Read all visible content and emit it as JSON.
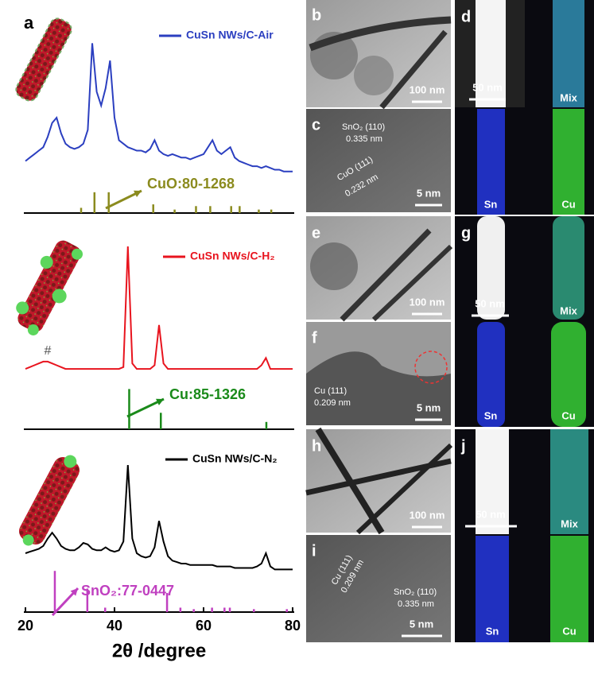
{
  "chart_data": [
    {
      "type": "line",
      "panel_label": "a",
      "x": [
        20,
        21,
        22,
        23,
        24,
        25,
        26,
        27,
        28,
        29,
        30,
        31,
        32,
        33,
        34,
        35,
        36,
        37,
        38,
        39,
        40,
        41,
        42,
        43,
        44,
        45,
        46,
        47,
        48,
        49,
        50,
        51,
        52,
        53,
        54,
        55,
        56,
        57,
        58,
        59,
        60,
        61,
        62,
        63,
        64,
        65,
        66,
        67,
        68,
        69,
        70,
        71,
        72,
        73,
        74,
        75,
        76,
        77,
        78,
        79,
        80
      ],
      "xlim": [
        20,
        80
      ],
      "ylim": [
        0,
        100
      ],
      "series": [
        {
          "name": "CuSn NWs/C-Air",
          "color": "#2b3fc0",
          "values": [
            30,
            32,
            34,
            36,
            38,
            44,
            52,
            55,
            46,
            40,
            38,
            37,
            38,
            40,
            48,
            98,
            70,
            62,
            72,
            88,
            55,
            42,
            40,
            38,
            37,
            36,
            36,
            35,
            37,
            42,
            36,
            34,
            33,
            34,
            33,
            32,
            32,
            31,
            32,
            33,
            34,
            38,
            42,
            36,
            34,
            36,
            38,
            32,
            30,
            29,
            28,
            27,
            27,
            26,
            27,
            26,
            25,
            25,
            24,
            24,
            24
          ]
        }
      ],
      "reference": {
        "name": "CuO:80-1268",
        "color": "#8b8b1e",
        "x": [
          32.5,
          35.5,
          38.7,
          48.7,
          53.5,
          58.3,
          61.5,
          66.2,
          68.1,
          72.4,
          75.2
        ],
        "values": [
          3,
          12,
          12,
          5,
          2,
          4,
          4,
          4,
          4,
          2,
          2
        ]
      }
    },
    {
      "type": "line",
      "x": [
        20,
        21,
        22,
        23,
        24,
        25,
        26,
        27,
        28,
        29,
        30,
        31,
        32,
        33,
        34,
        35,
        36,
        37,
        38,
        39,
        40,
        41,
        42,
        43,
        44,
        45,
        46,
        47,
        48,
        49,
        50,
        51,
        52,
        53,
        54,
        55,
        56,
        57,
        58,
        59,
        60,
        61,
        62,
        63,
        64,
        65,
        66,
        67,
        68,
        69,
        70,
        71,
        72,
        73,
        74,
        75,
        76,
        77,
        78,
        79,
        80
      ],
      "xlim": [
        20,
        80
      ],
      "ylim": [
        0,
        100
      ],
      "series": [
        {
          "name": "CuSn NWs/C-H₂",
          "color": "#e8141e",
          "values": [
            33,
            34,
            35,
            36,
            37,
            37,
            36,
            35,
            34,
            33,
            33,
            33,
            33,
            33,
            33,
            33,
            33,
            33,
            33,
            33,
            33,
            33,
            34,
            100,
            36,
            33,
            33,
            33,
            33,
            35,
            57,
            36,
            33,
            33,
            33,
            33,
            33,
            33,
            33,
            33,
            33,
            33,
            33,
            33,
            33,
            33,
            33,
            33,
            33,
            33,
            33,
            33,
            33,
            35,
            39,
            33,
            33,
            33,
            33,
            33,
            33
          ]
        }
      ],
      "reference": {
        "name": "Cu:85-1326",
        "color": "#1a8a1a",
        "x": [
          43.3,
          50.4,
          74.1
        ],
        "values": [
          22,
          9,
          4
        ]
      },
      "annotations": [
        "#"
      ]
    },
    {
      "type": "line",
      "x": [
        20,
        21,
        22,
        23,
        24,
        25,
        26,
        27,
        28,
        29,
        30,
        31,
        32,
        33,
        34,
        35,
        36,
        37,
        38,
        39,
        40,
        41,
        42,
        43,
        44,
        45,
        46,
        47,
        48,
        49,
        50,
        51,
        52,
        53,
        54,
        55,
        56,
        57,
        58,
        59,
        60,
        61,
        62,
        63,
        64,
        65,
        66,
        67,
        68,
        69,
        70,
        71,
        72,
        73,
        74,
        75,
        76,
        77,
        78,
        79,
        80
      ],
      "xlim": [
        20,
        80
      ],
      "ylim": [
        0,
        100
      ],
      "xticks": [
        20,
        40,
        60,
        80
      ],
      "xlabel": "2θ /degree",
      "series": [
        {
          "name": "CuSn NWs/C-N₂",
          "color": "#000000",
          "values": [
            40,
            41,
            42,
            43,
            45,
            50,
            54,
            50,
            45,
            43,
            42,
            42,
            44,
            47,
            46,
            43,
            42,
            42,
            44,
            42,
            41,
            42,
            48,
            100,
            50,
            40,
            38,
            37,
            38,
            44,
            62,
            48,
            38,
            35,
            34,
            33,
            33,
            32,
            32,
            32,
            32,
            32,
            32,
            31,
            31,
            31,
            31,
            30,
            30,
            30,
            30,
            30,
            31,
            33,
            40,
            31,
            29,
            29,
            29,
            29,
            29
          ]
        }
      ],
      "reference": {
        "name": "SnO₂:77-0447",
        "color": "#c040c0",
        "x": [
          26.6,
          33.9,
          37.9,
          51.8,
          54.8,
          57.8,
          61.9,
          64.7,
          65.9,
          71.3,
          78.7
        ],
        "values": [
          28,
          16,
          3,
          13,
          3,
          2,
          3,
          3,
          3,
          2,
          2
        ]
      }
    }
  ],
  "panels": [
    {
      "label": "b",
      "scale_bar": "100 nm"
    },
    {
      "label": "c",
      "annotations": [
        "SnO₂ (110)",
        "0.335 nm",
        "CuO (111)",
        "0.232 nm"
      ],
      "scale_bar": "5 nm"
    },
    {
      "label": "d",
      "scale_bar": "50 nm",
      "maps": [
        "Mix",
        "Sn",
        "Cu"
      ]
    },
    {
      "label": "e",
      "scale_bar": "100 nm"
    },
    {
      "label": "f",
      "annotations": [
        "Cu (111)",
        "0.209 nm"
      ],
      "scale_bar": "5 nm"
    },
    {
      "label": "g",
      "scale_bar": "50 nm",
      "maps": [
        "Mix",
        "Sn",
        "Cu"
      ]
    },
    {
      "label": "h",
      "scale_bar": "100 nm"
    },
    {
      "label": "i",
      "annotations": [
        "Cu (111)",
        "0.209 nm",
        "SnO₂ (110)",
        "0.335 nm"
      ],
      "scale_bar": "5 nm"
    },
    {
      "label": "j",
      "scale_bar": "50 nm",
      "maps": [
        "Mix",
        "Sn",
        "Cu"
      ]
    }
  ]
}
